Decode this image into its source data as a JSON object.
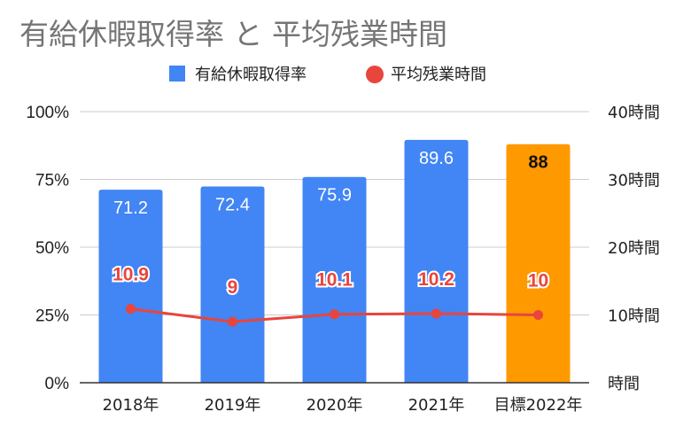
{
  "chart_data": {
    "type": "bar",
    "title": "有給休暇取得率 と 平均残業時間",
    "categories": [
      "2018年",
      "2019年",
      "2020年",
      "2021年",
      "目標2022年"
    ],
    "legend": [
      "有給休暇取得率",
      "平均残業時間"
    ],
    "legend_position": "top",
    "grid": true,
    "y_left": {
      "ylim": [
        0,
        100
      ],
      "ticks": [
        "0%",
        "25%",
        "50%",
        "75%",
        "100%"
      ]
    },
    "y_right": {
      "ylim": [
        0,
        40
      ],
      "ticks": [
        "時間",
        "10時間",
        "20時間",
        "30時間",
        "40時間"
      ]
    },
    "series": [
      {
        "name": "有給休暇取得率",
        "type": "bar",
        "axis": "left",
        "values": [
          71.2,
          72.4,
          75.9,
          89.6,
          88
        ],
        "labels": [
          "71.2",
          "72.4",
          "75.9",
          "89.6",
          "88"
        ],
        "color": "#4285f4",
        "highlight_color": "#ff9900",
        "highlight_index": 4
      },
      {
        "name": "平均残業時間",
        "type": "line",
        "axis": "right",
        "values": [
          10.9,
          9,
          10.1,
          10.2,
          10
        ],
        "labels": [
          "10.9",
          "9",
          "10.1",
          "10.2",
          "10"
        ],
        "color": "#e8453c"
      }
    ]
  }
}
